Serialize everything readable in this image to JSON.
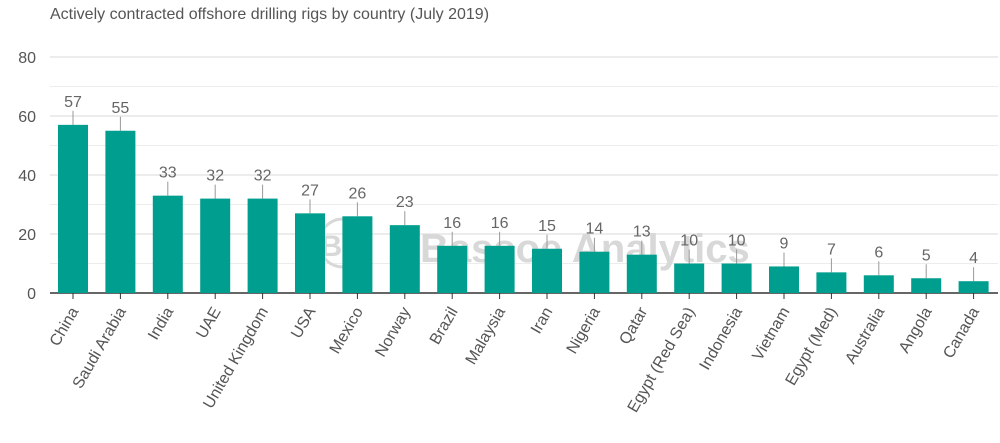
{
  "chart_data": {
    "type": "bar",
    "title": "Actively contracted offshore drilling rigs by country (July 2019)",
    "categories": [
      "China",
      "Saudi Arabia",
      "India",
      "UAE",
      "United Kingdom",
      "USA",
      "Mexico",
      "Norway",
      "Brazil",
      "Malaysia",
      "Iran",
      "Nigeria",
      "Qatar",
      "Egypt (Red Sea)",
      "Indonesia",
      "Vietnam",
      "Egypt (Med)",
      "Australia",
      "Angola",
      "Canada"
    ],
    "values": [
      57,
      55,
      33,
      32,
      32,
      27,
      26,
      23,
      16,
      16,
      15,
      14,
      13,
      10,
      10,
      9,
      7,
      6,
      5,
      4
    ],
    "yticks": [
      0,
      20,
      40,
      60,
      80
    ],
    "ylim": [
      0,
      80
    ],
    "xlabel": "",
    "ylabel": "",
    "grid": true,
    "bar_color": "#009e8e",
    "watermark": "Bassoe Analytics",
    "watermark_logo": "BO"
  }
}
